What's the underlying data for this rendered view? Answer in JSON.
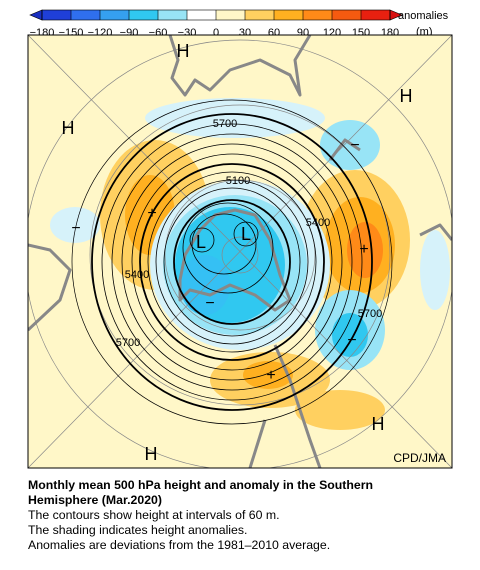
{
  "colorbar": {
    "ticks": [
      {
        "value": -180,
        "label": "−180"
      },
      {
        "value": -150,
        "label": "−150"
      },
      {
        "value": -120,
        "label": "−120"
      },
      {
        "value": -90,
        "label": "−90"
      },
      {
        "value": -60,
        "label": "−60"
      },
      {
        "value": -30,
        "label": "−30"
      },
      0,
      30,
      60,
      90,
      120,
      150,
      180
    ],
    "colors": [
      "#1f3fd8",
      "#2f6fee",
      "#35a0f0",
      "#30c8f0",
      "#98e4f6",
      "#ffffff",
      "#fff7c8",
      "#ffd060",
      "#ffb020",
      "#ff8a18",
      "#f55a10",
      "#e82010"
    ],
    "under_color": "#1a2fc0",
    "over_color": "#d81010",
    "label": "anomalies",
    "unit": "(m)"
  },
  "map": {
    "contour_labels": [
      5700,
      5100,
      5400,
      5400,
      5700,
      5700
    ],
    "centers": [
      "H",
      "H",
      "H",
      "H",
      "H",
      "L",
      "L"
    ],
    "signs": [
      "+",
      "+",
      "+",
      "−",
      "−",
      "−",
      "−"
    ],
    "credit": "CPD/JMA"
  },
  "caption": {
    "title": "Monthly mean 500 hPa height and anomaly in the Southern Hemisphere (Mar.2020)",
    "lines": [
      "The contours show height at intervals of 60 m.",
      "The shading indicates height anomalies.",
      "Anomalies are deviations from the 1981–2010 average."
    ]
  }
}
